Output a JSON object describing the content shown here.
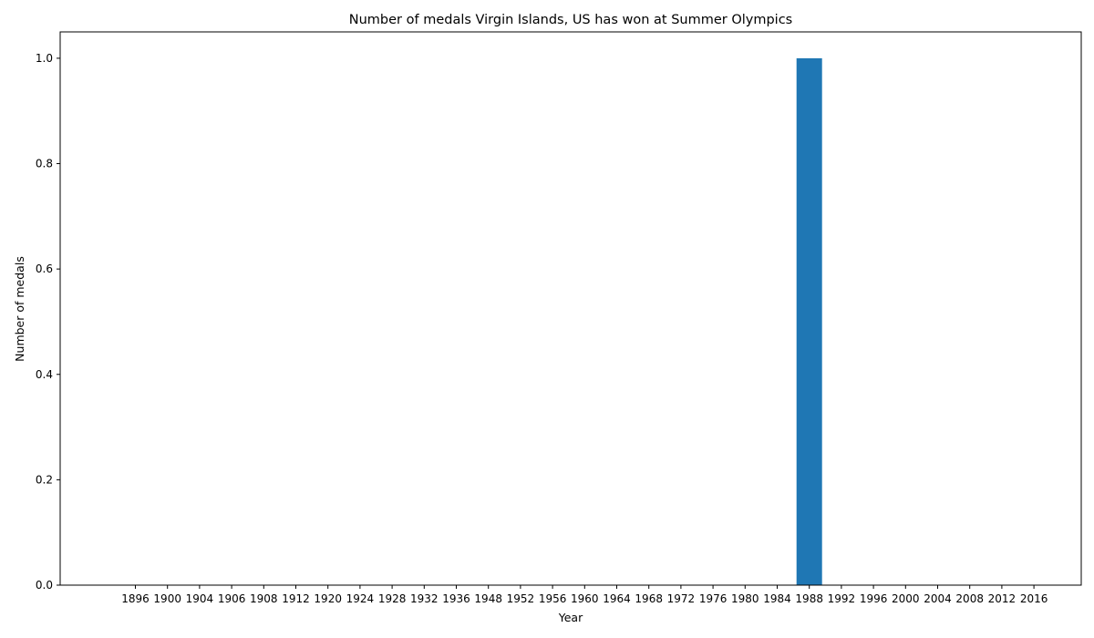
{
  "chart_data": {
    "type": "bar",
    "title": "Number of medals Virgin Islands, US has won at Summer Olympics",
    "xlabel": "Year",
    "ylabel": "Number of medals",
    "categories": [
      "1896",
      "1900",
      "1904",
      "1906",
      "1908",
      "1912",
      "1920",
      "1924",
      "1928",
      "1932",
      "1936",
      "1948",
      "1952",
      "1956",
      "1960",
      "1964",
      "1968",
      "1972",
      "1976",
      "1980",
      "1984",
      "1988",
      "1992",
      "1996",
      "2000",
      "2004",
      "2008",
      "2012",
      "2016"
    ],
    "values": [
      0,
      0,
      0,
      0,
      0,
      0,
      0,
      0,
      0,
      0,
      0,
      0,
      0,
      0,
      0,
      0,
      0,
      0,
      0,
      0,
      0,
      1,
      0,
      0,
      0,
      0,
      0,
      0,
      0
    ],
    "ylim": [
      0,
      1.05
    ],
    "yticks": [
      0.0,
      0.2,
      0.4,
      0.6,
      0.8,
      1.0
    ],
    "ytick_labels": [
      "0.0",
      "0.2",
      "0.4",
      "0.6",
      "0.8",
      "1.0"
    ],
    "grid": false,
    "colors": {
      "bar": "#1f77b4",
      "axis": "#000000",
      "background": "#ffffff"
    }
  }
}
